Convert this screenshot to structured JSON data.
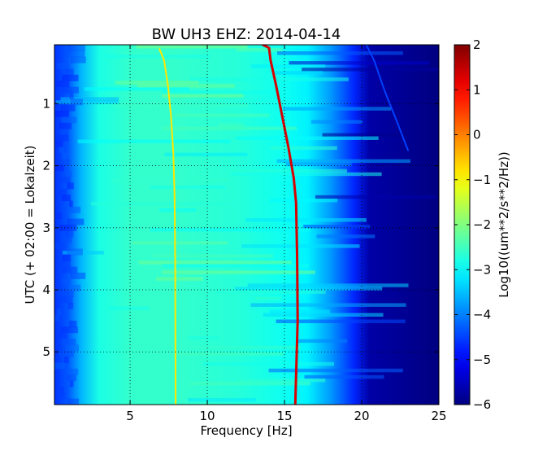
{
  "chart_data": {
    "type": "heatmap",
    "title": "BW UH3 EHZ: 2014-04-14",
    "xlabel": "Frequency [Hz]",
    "ylabel": "UTC (+ 02:00 = Lokalzeit)",
    "xlim": [
      0.1,
      25
    ],
    "ylim": [
      5.85,
      0.05
    ],
    "xticks": [
      5,
      10,
      15,
      20,
      25
    ],
    "xtick_labels": [
      "5",
      "10",
      "15",
      "20",
      "25"
    ],
    "yticks": [
      1,
      2,
      3,
      4,
      5
    ],
    "ytick_labels": [
      "1",
      "2",
      "3",
      "4",
      "5"
    ],
    "grid": true,
    "colormap": "jet",
    "colorbar": {
      "label": "Log10((um**2/s**2/Hz))",
      "range": [
        -6,
        2
      ],
      "ticks": [
        2,
        1,
        0,
        -1,
        -2,
        -3,
        -4,
        -5,
        -6
      ],
      "tick_labels": [
        "2",
        "1",
        "0",
        "−1",
        "−2",
        "−3",
        "−4",
        "−5",
        "−6"
      ]
    },
    "background_level_by_frequency": [
      {
        "x": 0.1,
        "value": -4.6
      },
      {
        "x": 1.0,
        "value": -4.3
      },
      {
        "x": 1.8,
        "value": -3.6
      },
      {
        "x": 3.0,
        "value": -2.8
      },
      {
        "x": 5.0,
        "value": -2.6
      },
      {
        "x": 8.0,
        "value": -2.6
      },
      {
        "x": 12.0,
        "value": -2.7
      },
      {
        "x": 15.0,
        "value": -2.9
      },
      {
        "x": 16.5,
        "value": -3.1
      },
      {
        "x": 18.0,
        "value": -3.8
      },
      {
        "x": 19.5,
        "value": -4.7
      },
      {
        "x": 20.5,
        "value": -5.7
      },
      {
        "x": 25.0,
        "value": -6.0
      }
    ],
    "series": [
      {
        "points": [
          {
            "x": 6.9,
            "y": 0.12
          },
          {
            "x": 7.2,
            "y": 0.3
          },
          {
            "x": 7.45,
            "y": 0.7
          },
          {
            "x": 7.65,
            "y": 1.2
          },
          {
            "x": 7.8,
            "y": 1.8
          },
          {
            "x": 7.88,
            "y": 2.5
          },
          {
            "x": 7.92,
            "y": 3.5
          },
          {
            "x": 7.95,
            "y": 5.85
          }
        ],
        "value": -0.8
      },
      {
        "points": [
          {
            "x": 13.6,
            "y": 0.05
          },
          {
            "x": 14.0,
            "y": 0.1
          },
          {
            "x": 14.1,
            "y": 0.3
          },
          {
            "x": 14.45,
            "y": 0.7
          },
          {
            "x": 14.85,
            "y": 1.2
          },
          {
            "x": 15.25,
            "y": 1.7
          },
          {
            "x": 15.6,
            "y": 2.2
          },
          {
            "x": 15.75,
            "y": 2.6
          },
          {
            "x": 15.82,
            "y": 3.5
          },
          {
            "x": 15.85,
            "y": 4.5
          },
          {
            "x": 15.7,
            "y": 5.85
          }
        ],
        "value": 1.3
      },
      {
        "points": [
          {
            "x": 20.3,
            "y": 0.05
          },
          {
            "x": 20.8,
            "y": 0.3
          },
          {
            "x": 21.5,
            "y": 0.8
          },
          {
            "x": 22.3,
            "y": 1.3
          },
          {
            "x": 23.0,
            "y": 1.75
          }
        ],
        "value": -4.5
      }
    ]
  }
}
